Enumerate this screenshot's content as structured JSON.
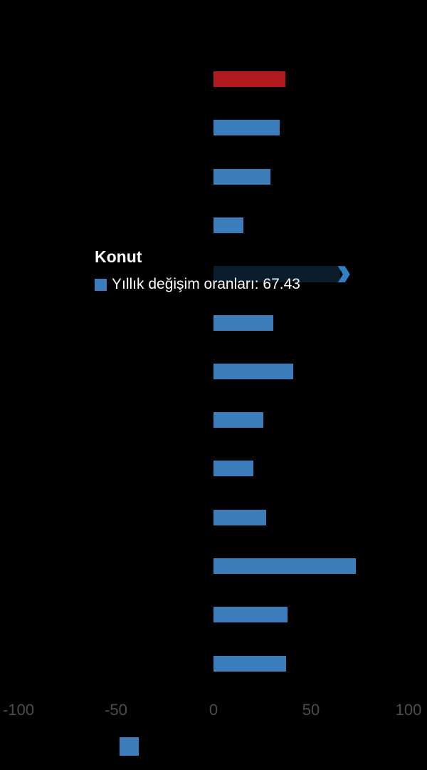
{
  "chart_data": {
    "type": "bar",
    "orientation": "horizontal",
    "title": "",
    "xlabel": "",
    "ylabel": "",
    "xlim": [
      -110,
      110
    ],
    "x_ticks": [
      -100,
      -50,
      0,
      50,
      100
    ],
    "grid": false,
    "background_color": "#000000",
    "legend_position": "bottom",
    "series": [
      {
        "name": "Yıllık değişim oranları",
        "color": "#3a7dba",
        "points": [
          {
            "category": "",
            "value": 36.7,
            "color": "#b01b1f"
          },
          {
            "category": "",
            "value": 33.9
          },
          {
            "category": "",
            "value": 29.2
          },
          {
            "category": "",
            "value": 15.3
          },
          {
            "category": "Konut",
            "value": 67.43,
            "state": "hovered",
            "color": "#0b1c2b",
            "arrow_color": "#3180c4"
          },
          {
            "category": "",
            "value": 30.8
          },
          {
            "category": "",
            "value": 41.0
          },
          {
            "category": "",
            "value": 25.5
          },
          {
            "category": "",
            "value": 20.4
          },
          {
            "category": "",
            "value": 27.0
          },
          {
            "category": "",
            "value": 73.0
          },
          {
            "category": "",
            "value": 38.0
          },
          {
            "category": "",
            "value": 37.3
          }
        ]
      }
    ]
  },
  "tooltip": {
    "title": "Konut",
    "series_label": "Yıllık değişim oranları",
    "value": "67.43",
    "text": "Yıllık değişim oranları: 67.43",
    "marker_color": "#3a7dba"
  },
  "x_axis": {
    "tick_labels": [
      "-100",
      "-50",
      "0",
      "50",
      "100"
    ],
    "text_color": "#4d4d4d"
  },
  "legend": {
    "marker_color": "#3a7dba"
  },
  "colors": {
    "bar_blue": "#3a7dba",
    "bar_red": "#b01b1f",
    "bar_hovered": "#0b1c2b",
    "arrow_blue": "#3180c4",
    "tooltip_text": "#ffffff"
  }
}
